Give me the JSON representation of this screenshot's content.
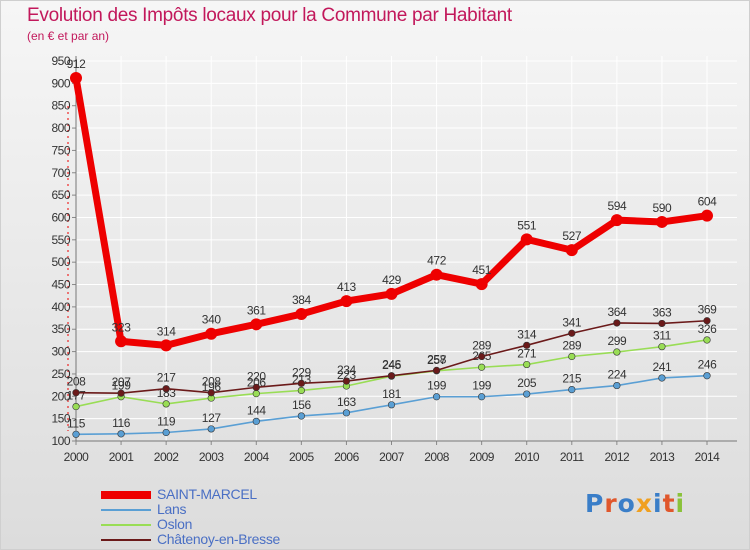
{
  "title": "Evolution des Impôts locaux pour la Commune par Habitant",
  "subtitle": "(en € et par an)",
  "logo": {
    "text": "Proxiti",
    "colors": [
      "#3a7ec8",
      "#e0572c",
      "#3a7ec8",
      "#f0a020",
      "#3a7ec8",
      "#e0572c",
      "#8ac23a"
    ]
  },
  "chart_data": {
    "type": "line",
    "title": "Evolution des Impôts locaux pour la Commune par Habitant",
    "subtitle": "(en € et par an)",
    "x": [
      "2000",
      "2001",
      "2002",
      "2003",
      "2004",
      "2005",
      "2006",
      "2007",
      "2008",
      "2009",
      "2010",
      "2011",
      "2012",
      "2013",
      "2014"
    ],
    "ylim": [
      100,
      950
    ],
    "yticks": [
      100,
      150,
      200,
      250,
      300,
      350,
      400,
      450,
      500,
      550,
      600,
      650,
      700,
      750,
      800,
      850,
      900,
      950
    ],
    "grid": true,
    "legend": "bottom-left",
    "series": [
      {
        "name": "SAINT-MARCEL",
        "color": "#ee0000",
        "values": [
          912,
          323,
          314,
          340,
          361,
          384,
          413,
          429,
          472,
          451,
          551,
          527,
          594,
          590,
          604
        ]
      },
      {
        "name": "Lans",
        "color": "#5a9fd4",
        "values": [
          115,
          116,
          119,
          127,
          144,
          156,
          163,
          181,
          199,
          199,
          205,
          215,
          224,
          241,
          246
        ]
      },
      {
        "name": "Oslon",
        "color": "#99dd55",
        "values": [
          177,
          199,
          183,
          196,
          206,
          213,
          223,
          245,
          257,
          265,
          271,
          289,
          299,
          311,
          326
        ]
      },
      {
        "name": "Châtenoy-en-Bresse",
        "color": "#6b1a1a",
        "values": [
          208,
          207,
          217,
          208,
          220,
          229,
          234,
          246,
          258,
          289,
          314,
          341,
          364,
          363,
          369
        ]
      }
    ]
  }
}
